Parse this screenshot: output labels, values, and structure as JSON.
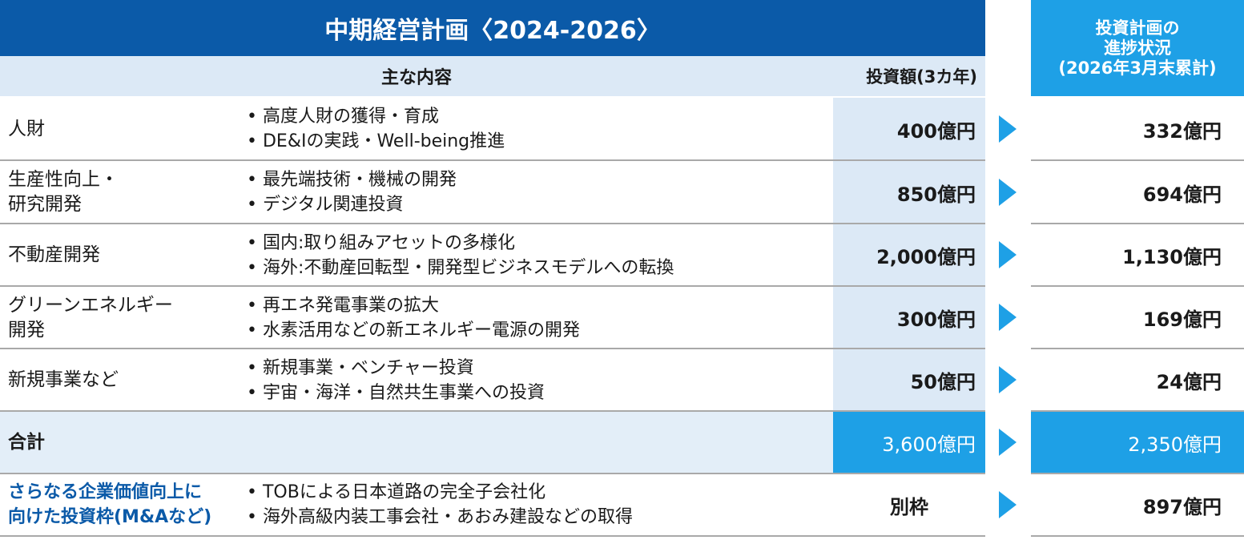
{
  "header": {
    "main_title": "中期経営計画〈2024-2026〉",
    "col_content": "主な内容",
    "col_investment": "投資額(3カ年)",
    "progress_title_line1": "投資計画の",
    "progress_title_line2": "進捗状況",
    "progress_title_line3": "(2026年3月末累計)"
  },
  "rows": [
    {
      "category_line1": "人財",
      "category_line2": "",
      "item1": "高度人財の獲得・育成",
      "item2": "DE&Iの実践・Well-being推進",
      "investment": "400億円",
      "progress": "332億円"
    },
    {
      "category_line1": "生産性向上・",
      "category_line2": "研究開発",
      "item1": "最先端技術・機械の開発",
      "item2": "デジタル関連投資",
      "investment": "850億円",
      "progress": "694億円"
    },
    {
      "category_line1": "不動産開発",
      "category_line2": "",
      "item1": "国内:取り組みアセットの多様化",
      "item2": "海外:不動産回転型・開発型ビジネスモデルへの転換",
      "investment": "2,000億円",
      "progress": "1,130億円"
    },
    {
      "category_line1": "グリーンエネルギー",
      "category_line2": "開発",
      "item1": "再エネ発電事業の拡大",
      "item2": "水素活用などの新エネルギー電源の開発",
      "investment": "300億円",
      "progress": "169億円"
    },
    {
      "category_line1": "新規事業など",
      "category_line2": "",
      "item1": "新規事業・ベンチャー投資",
      "item2": "宇宙・海洋・自然共生事業への投資",
      "investment": "50億円",
      "progress": "24億円"
    }
  ],
  "total": {
    "label": "合計",
    "investment": "3,600億円",
    "progress": "2,350億円"
  },
  "mna": {
    "category_line1": "さらなる企業価値向上に",
    "category_line2": "向けた投資枠(M&Aなど)",
    "item1": "TOBによる日本道路の完全子会社化",
    "item2": "海外高級内装工事会社・あおみ建設などの取得",
    "investment": "別枠",
    "progress": "897億円"
  },
  "colors": {
    "header_blue": "#0b5aa8",
    "accent_cyan": "#1ea0e6",
    "light_blue": "#dce9f6"
  }
}
